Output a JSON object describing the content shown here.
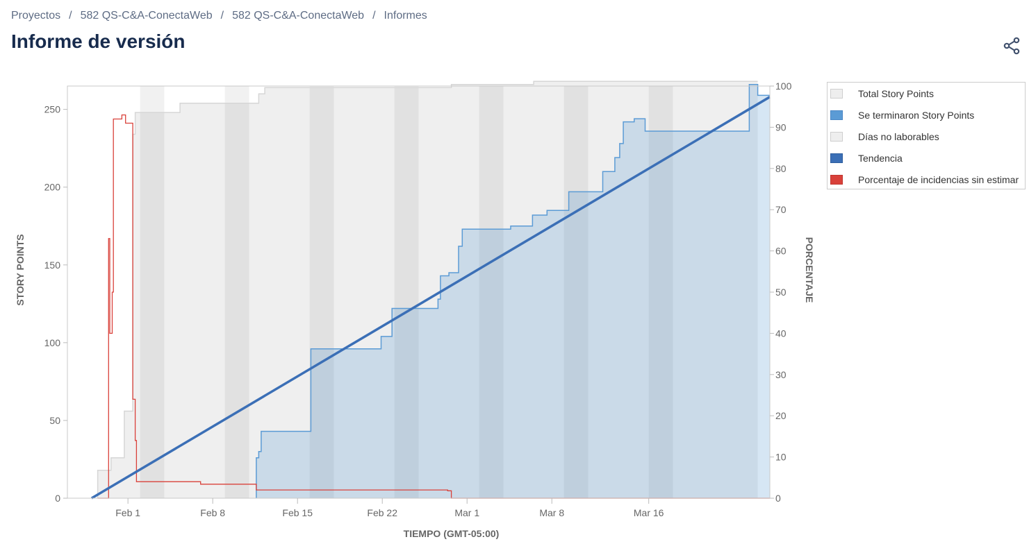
{
  "breadcrumb": {
    "items": [
      "Proyectos",
      "582 QS-C&A-ConectaWeb",
      "582 QS-C&A-ConectaWeb",
      "Informes"
    ],
    "separator": "/"
  },
  "page_title": "Informe de versión",
  "share_icon": "share-icon",
  "legend": [
    {
      "label": "Total Story Points",
      "color": "#eeeeee"
    },
    {
      "label": "Se terminaron Story Points",
      "color": "#5b9bd5"
    },
    {
      "label": "Días no laborables",
      "color": "#eeeeee"
    },
    {
      "label": "Tendencia",
      "color": "#3b6fb6"
    },
    {
      "label": "Porcentaje de incidencias sin estimar",
      "color": "#d9413a"
    }
  ],
  "chart_data": {
    "type": "line",
    "xlabel": "TIEMPO (GMT-05:00)",
    "ylabel": "STORY POINTS",
    "y2label": "PORCENTAJE",
    "ylim": [
      0,
      265
    ],
    "y2lim": [
      0,
      100
    ],
    "yticks": [
      0,
      50,
      100,
      150,
      200,
      250
    ],
    "y2ticks": [
      0,
      10,
      20,
      30,
      40,
      50,
      60,
      70,
      80,
      90,
      100
    ],
    "xlim_days": [
      -5,
      53
    ],
    "x_base_date": "Feb 1",
    "xticks": [
      {
        "day": 0,
        "label": "Feb 1"
      },
      {
        "day": 7,
        "label": "Feb 8"
      },
      {
        "day": 14,
        "label": "Feb 15"
      },
      {
        "day": 21,
        "label": "Feb 22"
      },
      {
        "day": 28,
        "label": "Mar 1"
      },
      {
        "day": 35,
        "label": "Mar 8"
      },
      {
        "day": 43,
        "label": "Mar 16"
      }
    ],
    "non_working_days": [
      [
        1,
        3
      ],
      [
        8,
        10
      ],
      [
        15,
        17
      ],
      [
        22,
        24
      ],
      [
        29,
        31
      ],
      [
        36,
        38
      ],
      [
        43,
        45
      ]
    ],
    "series": [
      {
        "name": "Total Story Points",
        "color": "#d6d6d6",
        "points": [
          [
            -2.5,
            0
          ],
          [
            -2.5,
            18
          ],
          [
            -1.4,
            18
          ],
          [
            -1.4,
            26
          ],
          [
            -0.3,
            26
          ],
          [
            -0.3,
            56
          ],
          [
            0.4,
            56
          ],
          [
            0.4,
            234
          ],
          [
            0.6,
            234
          ],
          [
            0.6,
            248
          ],
          [
            4.3,
            248
          ],
          [
            4.3,
            254
          ],
          [
            10.8,
            254
          ],
          [
            10.8,
            260
          ],
          [
            11.3,
            260
          ],
          [
            11.3,
            264
          ],
          [
            26.7,
            264
          ],
          [
            26.7,
            266
          ],
          [
            33.5,
            266
          ],
          [
            33.5,
            268
          ],
          [
            52,
            268
          ]
        ]
      },
      {
        "name": "Se terminaron Story Points",
        "color": "#5b9bd5",
        "points": [
          [
            10.6,
            0
          ],
          [
            10.6,
            26
          ],
          [
            10.8,
            26
          ],
          [
            10.8,
            30
          ],
          [
            11,
            30
          ],
          [
            11,
            43
          ],
          [
            15.1,
            43
          ],
          [
            15.1,
            96
          ],
          [
            20.9,
            96
          ],
          [
            20.9,
            104
          ],
          [
            21.8,
            104
          ],
          [
            21.8,
            122
          ],
          [
            25.6,
            122
          ],
          [
            25.6,
            128
          ],
          [
            25.8,
            128
          ],
          [
            25.8,
            143
          ],
          [
            26.5,
            143
          ],
          [
            26.5,
            145
          ],
          [
            27.3,
            145
          ],
          [
            27.3,
            162
          ],
          [
            27.6,
            162
          ],
          [
            27.6,
            173
          ],
          [
            31.6,
            173
          ],
          [
            31.6,
            175
          ],
          [
            33.4,
            175
          ],
          [
            33.4,
            182
          ],
          [
            34.6,
            182
          ],
          [
            34.6,
            185
          ],
          [
            36.4,
            185
          ],
          [
            36.4,
            197
          ],
          [
            39.2,
            197
          ],
          [
            39.2,
            210
          ],
          [
            40.2,
            210
          ],
          [
            40.2,
            219
          ],
          [
            40.6,
            219
          ],
          [
            40.6,
            228
          ],
          [
            40.9,
            228
          ],
          [
            40.9,
            242
          ],
          [
            41.8,
            242
          ],
          [
            41.8,
            244
          ],
          [
            42.7,
            244
          ],
          [
            42.7,
            236
          ],
          [
            51.3,
            236
          ],
          [
            51.3,
            266
          ],
          [
            52,
            266
          ],
          [
            52,
            259
          ],
          [
            53,
            259
          ]
        ]
      },
      {
        "name": "Tendencia",
        "color": "#3b6fb6",
        "points": [
          [
            -3,
            0
          ],
          [
            53,
            258
          ]
        ]
      },
      {
        "name": "Porcentaje de incidencias sin estimar",
        "color": "#d9413a",
        "axis": "right",
        "points": [
          [
            -2.5,
            0
          ],
          [
            -1.6,
            0
          ],
          [
            -1.6,
            63
          ],
          [
            -1.5,
            63
          ],
          [
            -1.5,
            40
          ],
          [
            -1.3,
            40
          ],
          [
            -1.3,
            50
          ],
          [
            -1.2,
            50
          ],
          [
            -1.2,
            92
          ],
          [
            -0.5,
            92
          ],
          [
            -0.5,
            93
          ],
          [
            -0.2,
            93
          ],
          [
            -0.2,
            91
          ],
          [
            0.4,
            91
          ],
          [
            0.4,
            24
          ],
          [
            0.6,
            24
          ],
          [
            0.6,
            14
          ],
          [
            0.7,
            14
          ],
          [
            0.7,
            4
          ],
          [
            6,
            4
          ],
          [
            6,
            3.4
          ],
          [
            10.6,
            3.4
          ],
          [
            10.6,
            2
          ],
          [
            26.4,
            2
          ],
          [
            26.4,
            1.8
          ],
          [
            26.7,
            1.8
          ],
          [
            26.7,
            0
          ],
          [
            53,
            0
          ]
        ]
      }
    ]
  }
}
